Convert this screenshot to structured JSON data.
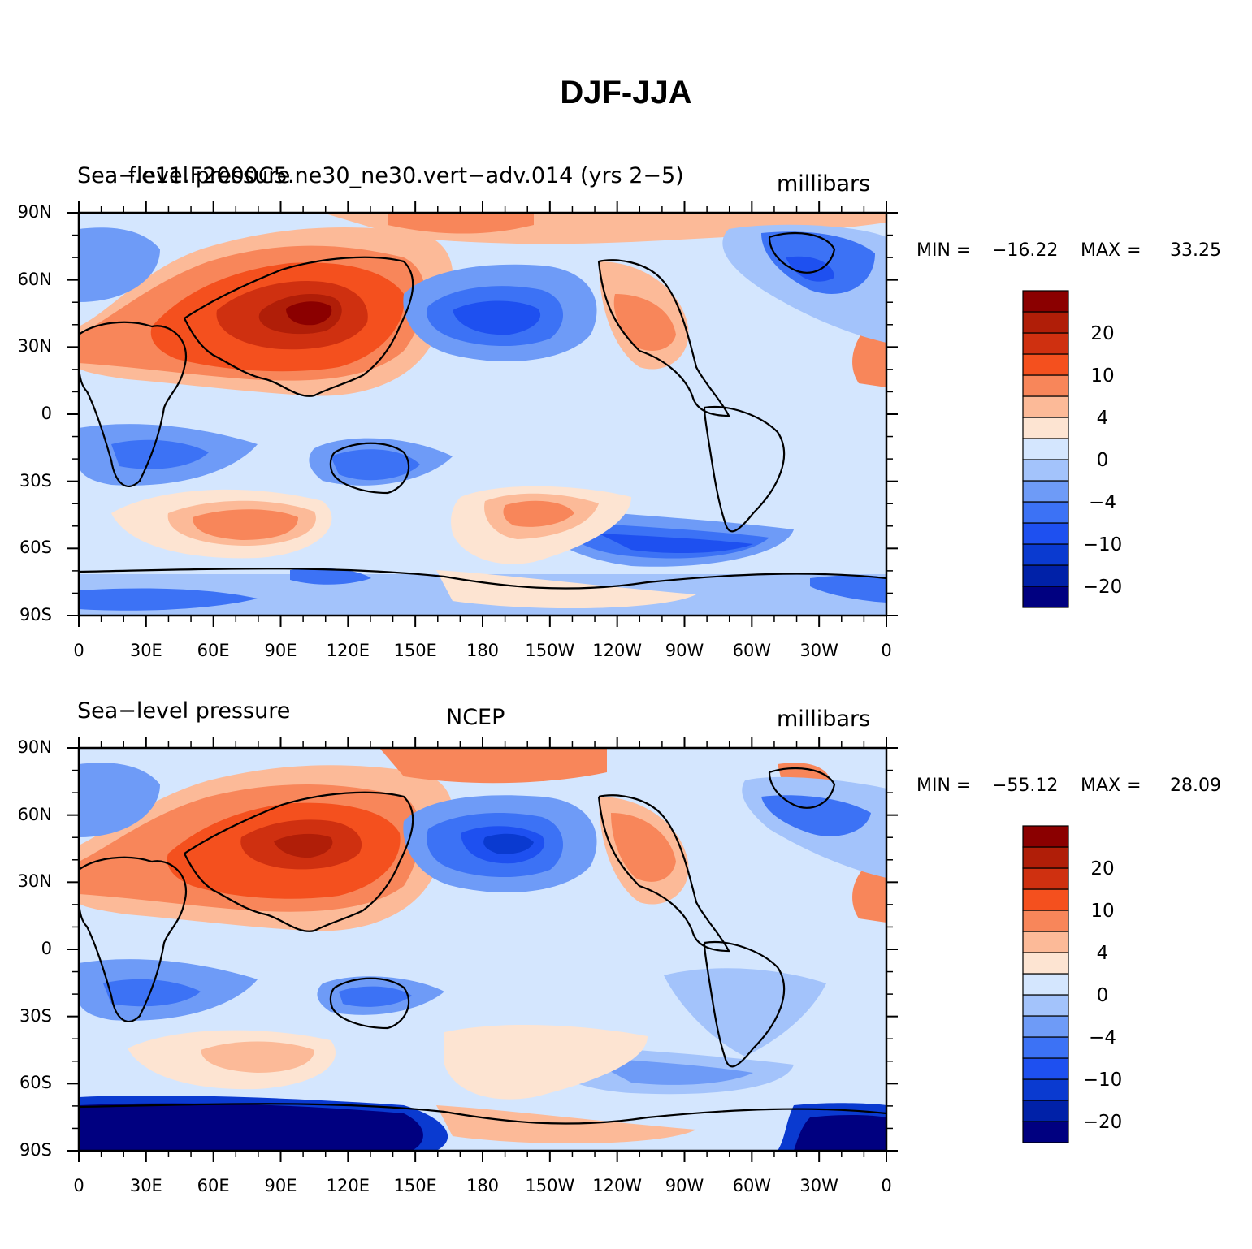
{
  "title": "DJF-JJA",
  "colorbar": {
    "colors": [
      "#000080",
      "#0021a8",
      "#0a3ad0",
      "#1e50f0",
      "#3c72f5",
      "#6e9bf7",
      "#a3c3fb",
      "#d4e6fe",
      "#fde4d2",
      "#fcba98",
      "#f8865a",
      "#f4501e",
      "#cf3010",
      "#b01e08",
      "#8b0000"
    ],
    "labels": [
      "-20",
      "-10",
      "-4",
      "0",
      "4",
      "10",
      "20"
    ]
  },
  "axes": {
    "x_ticks": [
      "0",
      "30E",
      "60E",
      "90E",
      "120E",
      "150E",
      "180",
      "150W",
      "120W",
      "90W",
      "60W",
      "30W",
      "0"
    ],
    "y_ticks": [
      "90N",
      "60N",
      "30N",
      "0",
      "30S",
      "60S",
      "90S"
    ]
  },
  "panels": [
    {
      "left_title": "Sea−level pressure",
      "center_title": "f.e11.F2000C5.ne30_ne30.vert−adv.014 (yrs 2−5)",
      "right_title": "millibars",
      "min_label": "MIN =",
      "min_value": "−16.22",
      "max_label": "MAX =",
      "max_value": "33.25",
      "cb_labels": [
        "20",
        "10",
        "4",
        "0",
        "−4",
        "−10",
        "−20"
      ]
    },
    {
      "left_title": "Sea−level pressure",
      "center_title": "NCEP",
      "right_title": "millibars",
      "min_label": "MIN =",
      "min_value": "−55.12",
      "max_label": "MAX =",
      "max_value": "28.09",
      "cb_labels": [
        "20",
        "10",
        "4",
        "0",
        "−4",
        "−10",
        "−20"
      ]
    }
  ],
  "colors": {
    "background": "#d4e6fe",
    "coastline": "#000000"
  }
}
